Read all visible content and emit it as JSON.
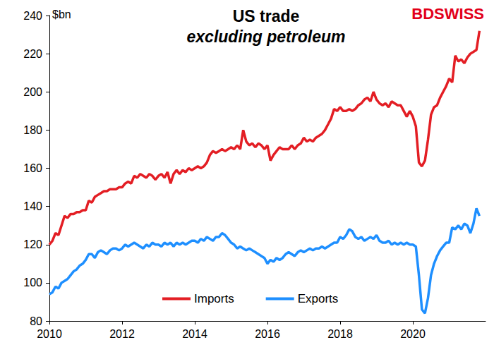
{
  "chart_data": {
    "type": "line",
    "title": "US trade",
    "subtitle": "excluding petroleum",
    "ylabel": "$bn",
    "logo": "BDSWISS",
    "x": [
      2010,
      2010.083,
      2010.167,
      2010.25,
      2010.333,
      2010.417,
      2010.5,
      2010.583,
      2010.667,
      2010.75,
      2010.833,
      2010.917,
      2011,
      2011.083,
      2011.167,
      2011.25,
      2011.333,
      2011.417,
      2011.5,
      2011.583,
      2011.667,
      2011.75,
      2011.833,
      2011.917,
      2012,
      2012.083,
      2012.167,
      2012.25,
      2012.333,
      2012.417,
      2012.5,
      2012.583,
      2012.667,
      2012.75,
      2012.833,
      2012.917,
      2013,
      2013.083,
      2013.167,
      2013.25,
      2013.333,
      2013.417,
      2013.5,
      2013.583,
      2013.667,
      2013.75,
      2013.833,
      2013.917,
      2014,
      2014.083,
      2014.167,
      2014.25,
      2014.333,
      2014.417,
      2014.5,
      2014.583,
      2014.667,
      2014.75,
      2014.833,
      2014.917,
      2015,
      2015.083,
      2015.167,
      2015.25,
      2015.333,
      2015.417,
      2015.5,
      2015.583,
      2015.667,
      2015.75,
      2015.833,
      2015.917,
      2016,
      2016.083,
      2016.167,
      2016.25,
      2016.333,
      2016.417,
      2016.5,
      2016.583,
      2016.667,
      2016.75,
      2016.833,
      2016.917,
      2017,
      2017.083,
      2017.167,
      2017.25,
      2017.333,
      2017.417,
      2017.5,
      2017.583,
      2017.667,
      2017.75,
      2017.833,
      2017.917,
      2018,
      2018.083,
      2018.167,
      2018.25,
      2018.333,
      2018.417,
      2018.5,
      2018.583,
      2018.667,
      2018.75,
      2018.833,
      2018.917,
      2019,
      2019.083,
      2019.167,
      2019.25,
      2019.333,
      2019.417,
      2019.5,
      2019.583,
      2019.667,
      2019.75,
      2019.833,
      2019.917,
      2020,
      2020.083,
      2020.167,
      2020.25,
      2020.333,
      2020.417,
      2020.5,
      2020.583,
      2020.667,
      2020.75,
      2020.833,
      2020.917,
      2021,
      2021.083,
      2021.167,
      2021.25,
      2021.333,
      2021.417,
      2021.5,
      2021.583,
      2021.667,
      2021.75,
      2021.833
    ],
    "series": [
      {
        "name": "Imports",
        "color": "#e31e24",
        "values": [
          120,
          122,
          126,
          125,
          130,
          135,
          134,
          136,
          136,
          137,
          137,
          138,
          138,
          143,
          142,
          145,
          146,
          147,
          148,
          148,
          149,
          149,
          149,
          150,
          150,
          152,
          153,
          152,
          156,
          155,
          157,
          156,
          155,
          157,
          156,
          154,
          156,
          157,
          155,
          158,
          152,
          157,
          159,
          157,
          159,
          158,
          160,
          159,
          160,
          161,
          160,
          161,
          163,
          167,
          169,
          168,
          169,
          170,
          169,
          170,
          171,
          170,
          172,
          170,
          180,
          174,
          172,
          173,
          171,
          173,
          172,
          170,
          172,
          164,
          167,
          169,
          171,
          170,
          170,
          170,
          172,
          170,
          172,
          173,
          176,
          174,
          175,
          174,
          176,
          177,
          178,
          180,
          183,
          186,
          191,
          190,
          192,
          190,
          190,
          191,
          190,
          191,
          193,
          194,
          196,
          197,
          195,
          200,
          196,
          194,
          193,
          194,
          192,
          195,
          194,
          193,
          193,
          190,
          187,
          190,
          187,
          182,
          163,
          161,
          164,
          175,
          188,
          192,
          193,
          197,
          200,
          203,
          207,
          205,
          219,
          216,
          217,
          215,
          218,
          220,
          221,
          222,
          232
        ]
      },
      {
        "name": "Exports",
        "color": "#1e8fff",
        "values": [
          94,
          95,
          98,
          97,
          100,
          101,
          102,
          104,
          106,
          107,
          109,
          110,
          112,
          115,
          115,
          113,
          116,
          117,
          116,
          115,
          117,
          118,
          118,
          117,
          118,
          120,
          119,
          120,
          121,
          120,
          119,
          118,
          120,
          119,
          121,
          120,
          120,
          119,
          121,
          120,
          121,
          119,
          121,
          120,
          121,
          120,
          121,
          122,
          122,
          121,
          123,
          122,
          124,
          123,
          122,
          124,
          124,
          126,
          125,
          123,
          121,
          120,
          118,
          119,
          118,
          117,
          118,
          117,
          116,
          115,
          114,
          113,
          110,
          112,
          111,
          113,
          112,
          113,
          115,
          116,
          115,
          114,
          116,
          117,
          116,
          117,
          118,
          117,
          118,
          118,
          119,
          118,
          119,
          120,
          121,
          121,
          124,
          123,
          125,
          128,
          127,
          124,
          123,
          124,
          122,
          123,
          124,
          123,
          125,
          122,
          121,
          121,
          122,
          120,
          121,
          120,
          121,
          120,
          121,
          120,
          120,
          119,
          104,
          86,
          84,
          92,
          104,
          110,
          114,
          117,
          119,
          121,
          121,
          129,
          128,
          130,
          128,
          131,
          130,
          126,
          131,
          139,
          135
        ]
      }
    ],
    "xlim": [
      2010,
      2022
    ],
    "xticks": [
      2010,
      2012,
      2014,
      2016,
      2018,
      2020
    ],
    "ylim": [
      80,
      240
    ],
    "yticks": [
      80,
      100,
      120,
      140,
      160,
      180,
      200,
      220,
      240
    ],
    "grid": false,
    "legend": "bottom"
  }
}
